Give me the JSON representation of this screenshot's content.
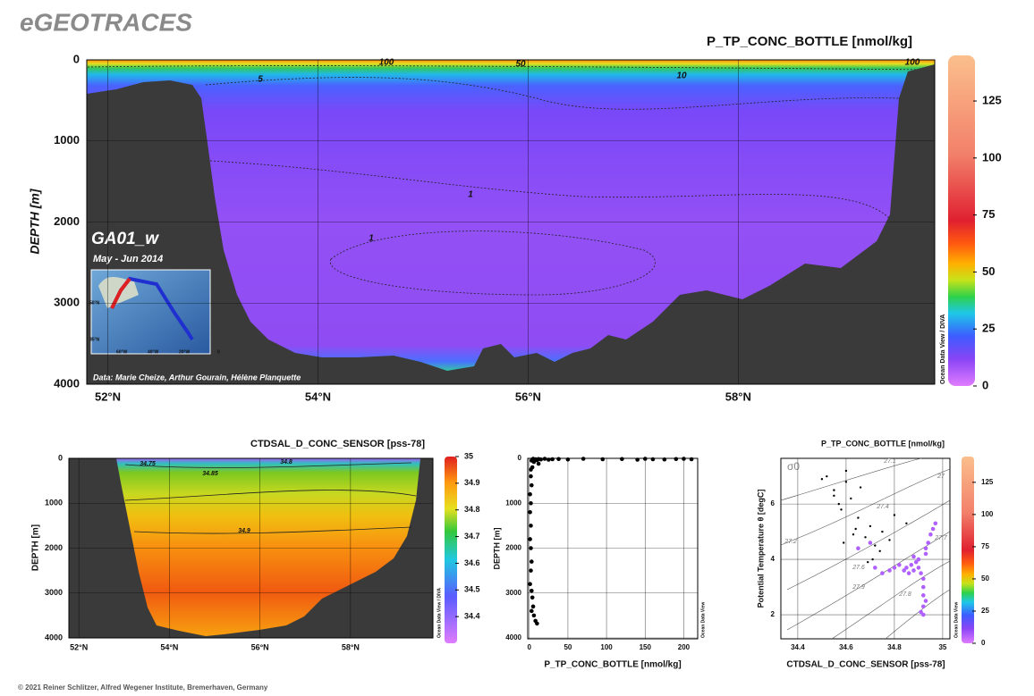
{
  "header": {
    "title": "eGEOTRACES"
  },
  "footer": "© 2021 Reiner Schlitzer, Alfred Wegener Institute, Bremerhaven, Germany",
  "chart_data": [
    {
      "type": "section",
      "title": "P_TP_CONC_BOTTLE [nmol/kg]",
      "y_label": "DEPTH [m]",
      "cruise": "GA01_w",
      "period": "May - Jun 2014",
      "credit": "Data: Marie Cheize, Arthur Gourain, Hélène Planquette",
      "watermark": "Ocean Data View / DIVA",
      "xlim": [
        51.8,
        59.87
      ],
      "xticks": [
        {
          "value": 52,
          "label": "52°N"
        },
        {
          "value": 54,
          "label": "54°N"
        },
        {
          "value": 56,
          "label": "56°N"
        },
        {
          "value": 58,
          "label": "58°N"
        }
      ],
      "ylim": [
        0,
        4000
      ],
      "y_reversed": true,
      "yticks": [
        0,
        1000,
        2000,
        3000,
        4000
      ],
      "grid": true,
      "clim": [
        0,
        145
      ],
      "cticks": [
        0,
        25,
        50,
        75,
        100,
        125
      ],
      "contour_labels": [
        "100",
        "50",
        "10",
        "5",
        "1",
        "1",
        "100"
      ],
      "inset_labels": [
        "50°N",
        "35°N",
        "60°W",
        "40°W",
        "20°W",
        "0"
      ]
    },
    {
      "type": "section",
      "title": "CTDSAL_D_CONC_SENSOR [pss-78]",
      "y_label": "DEPTH [m]",
      "watermark": "Ocean Data View / DIVA",
      "xlim": [
        51.78,
        59.82
      ],
      "xticks": [
        {
          "value": 52,
          "label": "52°N"
        },
        {
          "value": 54,
          "label": "54°N"
        },
        {
          "value": 56,
          "label": "56°N"
        },
        {
          "value": 58,
          "label": "58°N"
        }
      ],
      "ylim": [
        0,
        4000
      ],
      "y_reversed": true,
      "yticks": [
        0,
        1000,
        2000,
        3000,
        4000
      ],
      "grid": true,
      "clim": [
        34.3,
        35.0
      ],
      "cticks": [
        34.4,
        34.5,
        34.6,
        34.7,
        34.8,
        34.9,
        35
      ],
      "contour_labels": [
        "34.75",
        "34.8",
        "34.85",
        "34.9"
      ]
    },
    {
      "type": "scatter",
      "x_label": "P_TP_CONC_BOTTLE [nmol/kg]",
      "y_label": "DEPTH [m]",
      "watermark": "Ocean Data View",
      "xlim": [
        -2,
        218
      ],
      "xticks": [
        0,
        50,
        100,
        150,
        200
      ],
      "ylim": [
        0,
        4020
      ],
      "y_reversed": true,
      "yticks": [
        0,
        1000,
        2000,
        3000,
        4000
      ],
      "grid": true,
      "groups": [
        {
          "color": "#000000",
          "x": [
            5,
            8,
            12,
            15,
            20,
            25,
            30,
            38,
            50,
            70,
            95,
            120,
            140,
            150,
            160,
            175,
            190,
            200,
            210,
            3,
            6,
            10,
            12,
            4,
            2,
            2,
            3,
            1,
            2,
            1,
            2,
            1,
            2,
            3,
            2,
            1,
            3,
            4,
            5,
            6,
            8,
            10,
            3
          ],
          "y": [
            10,
            20,
            15,
            25,
            10,
            30,
            20,
            15,
            25,
            10,
            20,
            15,
            30,
            10,
            20,
            25,
            15,
            10,
            20,
            50,
            80,
            40,
            120,
            200,
            250,
            400,
            600,
            800,
            1000,
            1200,
            1500,
            1800,
            2000,
            2300,
            2500,
            2800,
            2950,
            3100,
            3300,
            3500,
            3620,
            3680,
            3400
          ]
        }
      ]
    },
    {
      "type": "scatter",
      "title": "P_TP_CONC_BOTTLE [nmol/kg]",
      "x_label": "CTDSAL_D_CONC_SENSOR [pss-78]",
      "y_label": "Potential Temperature θ [degC]",
      "sigma_label": "σ0",
      "watermark": "Ocean Data View",
      "xlim": [
        34.33,
        35.03
      ],
      "xticks": [
        34.4,
        34.6,
        34.8,
        35
      ],
      "ylim": [
        1.13,
        7.65
      ],
      "yticks": [
        2,
        4,
        6
      ],
      "grid": true,
      "clim": [
        0,
        145
      ],
      "cticks": [
        0,
        25,
        50,
        75,
        100,
        125
      ],
      "contour_labels": [
        "27.1",
        "27",
        "27.2",
        "27.4",
        "27.7",
        "27.6",
        "27.8",
        "27.9"
      ],
      "groups": [
        {
          "color": "#b060ff",
          "x": [
            34.85,
            34.87,
            34.88,
            34.9,
            34.91,
            34.92,
            34.89,
            34.86,
            34.84,
            34.82,
            34.8,
            34.78,
            34.75,
            34.72,
            34.92,
            34.92,
            34.93,
            34.92,
            34.91,
            34.92,
            34.93,
            34.94,
            34.95,
            34.96,
            34.97,
            34.93,
            34.9,
            34.88,
            34.7,
            34.65
          ],
          "y": [
            3.7,
            3.8,
            3.6,
            3.7,
            3.5,
            3.3,
            3.9,
            3.5,
            3.6,
            3.8,
            3.7,
            3.6,
            3.5,
            3.7,
            3.0,
            2.7,
            2.5,
            2.3,
            2.1,
            2.0,
            4.2,
            4.6,
            4.9,
            5.1,
            5.3,
            4.4,
            4.0,
            4.1,
            4.6,
            4.4
          ]
        },
        {
          "color": "#000000",
          "x": [
            34.52,
            34.55,
            34.6,
            34.62,
            34.58,
            34.65,
            34.7,
            34.75,
            34.8,
            34.68,
            34.72,
            34.63,
            34.57,
            34.66,
            34.74,
            34.78,
            34.85,
            34.6,
            34.64,
            34.69,
            34.55,
            34.5,
            34.59,
            34.71
          ],
          "y": [
            7.0,
            6.5,
            6.8,
            6.2,
            5.8,
            5.5,
            5.2,
            5.0,
            5.6,
            4.8,
            4.5,
            4.9,
            6.0,
            6.6,
            4.3,
            4.7,
            5.3,
            7.2,
            5.1,
            3.9,
            6.3,
            6.9,
            4.6,
            4.0
          ]
        }
      ]
    }
  ]
}
